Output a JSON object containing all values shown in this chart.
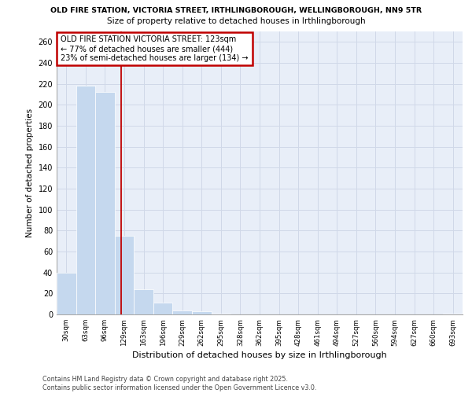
{
  "title_line1": "OLD FIRE STATION, VICTORIA STREET, IRTHLINGBOROUGH, WELLINGBOROUGH, NN9 5TR",
  "title_line2": "Size of property relative to detached houses in Irthlingborough",
  "xlabel": "Distribution of detached houses by size in Irthlingborough",
  "ylabel": "Number of detached properties",
  "footer_line1": "Contains HM Land Registry data © Crown copyright and database right 2025.",
  "footer_line2": "Contains public sector information licensed under the Open Government Licence v3.0.",
  "annotation_title": "OLD FIRE STATION VICTORIA STREET: 123sqm",
  "annotation_line1": "← 77% of detached houses are smaller (444)",
  "annotation_line2": "23% of semi-detached houses are larger (134) →",
  "categories": [
    "30sqm",
    "63sqm",
    "96sqm",
    "129sqm",
    "163sqm",
    "196sqm",
    "229sqm",
    "262sqm",
    "295sqm",
    "328sqm",
    "362sqm",
    "395sqm",
    "428sqm",
    "461sqm",
    "494sqm",
    "527sqm",
    "560sqm",
    "594sqm",
    "627sqm",
    "660sqm",
    "693sqm"
  ],
  "values": [
    40,
    218,
    212,
    75,
    24,
    11,
    4,
    3,
    1,
    0,
    0,
    0,
    0,
    0,
    0,
    0,
    0,
    0,
    0,
    0,
    1
  ],
  "bar_color": "#c5d8ee",
  "vline_color": "#c00000",
  "vline_x_index": 2.82,
  "annotation_box_color": "#c00000",
  "grid_color": "#d0d8e8",
  "bg_color": "#e8eef8",
  "ylim": [
    0,
    270
  ],
  "yticks": [
    0,
    20,
    40,
    60,
    80,
    100,
    120,
    140,
    160,
    180,
    200,
    220,
    240,
    260
  ]
}
